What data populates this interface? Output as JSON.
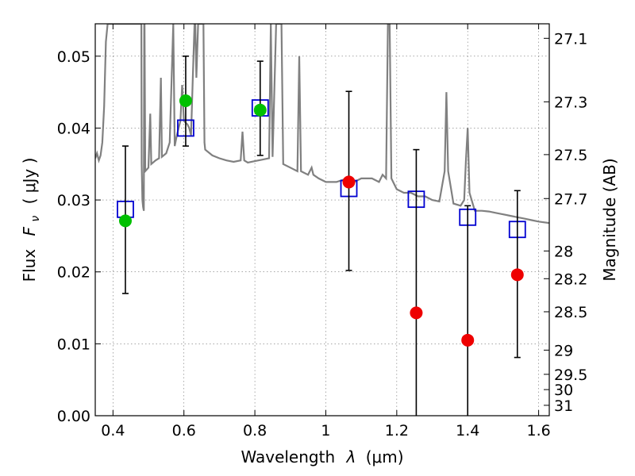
{
  "chart_data": {
    "type": "scatter",
    "xlabel_text": "Wavelength",
    "xlabel_math": "λ",
    "xlabel_unit": "(μm)",
    "ylabel_text": "Flux",
    "ylabel_math": "F",
    "ylabel_sub": "ν",
    "ylabel_unit": "( μJy )",
    "y2label": "Magnitude (AB)",
    "xlim": [
      0.35,
      1.63
    ],
    "ylim": [
      0.0,
      0.0545
    ],
    "x_ticks": [
      0.4,
      0.6,
      0.8,
      1.0,
      1.2,
      1.4,
      1.6
    ],
    "x_tick_labels": [
      "0.4",
      "0.6",
      "0.8",
      "1",
      "1.2",
      "1.4",
      "1.6"
    ],
    "y_ticks": [
      0.0,
      0.01,
      0.02,
      0.03,
      0.04,
      0.05
    ],
    "y_tick_labels": [
      "0.00",
      "0.01",
      "0.02",
      "0.03",
      "0.04",
      "0.05"
    ],
    "y2_ticks": [
      27.1,
      27.3,
      27.5,
      27.7,
      28,
      28.2,
      28.5,
      29,
      29.5,
      30,
      31
    ],
    "y2_tick_labels": [
      "27.1",
      "27.3",
      "27.5",
      "27.7",
      "28",
      "28.2",
      "28.5",
      "29",
      "29.5",
      "30",
      "31"
    ],
    "grid": true,
    "colors": {
      "spectrum": "#808080",
      "detection": "#00c000",
      "low_significance": "#ee0000",
      "model_photometry": "#0000d0",
      "errorbar": "#000000"
    },
    "series": [
      {
        "role": "spectrum",
        "style": "line",
        "points": [
          [
            0.35,
            0.0358
          ],
          [
            0.355,
            0.0365
          ],
          [
            0.36,
            0.0355
          ],
          [
            0.365,
            0.0362
          ],
          [
            0.37,
            0.038
          ],
          [
            0.375,
            0.043
          ],
          [
            0.38,
            0.052
          ],
          [
            0.385,
            0.0545
          ],
          [
            0.39,
            0.0545
          ],
          [
            0.395,
            0.0545
          ],
          [
            0.4,
            0.0545
          ],
          [
            0.405,
            0.0545
          ],
          [
            0.41,
            0.0545
          ],
          [
            0.415,
            0.0545
          ],
          [
            0.42,
            0.0545
          ],
          [
            0.425,
            0.0545
          ],
          [
            0.43,
            0.0545
          ],
          [
            0.435,
            0.0545
          ],
          [
            0.44,
            0.0545
          ],
          [
            0.445,
            0.0545
          ],
          [
            0.45,
            0.0545
          ],
          [
            0.455,
            0.0545
          ],
          [
            0.46,
            0.0545
          ],
          [
            0.465,
            0.0545
          ],
          [
            0.47,
            0.0545
          ],
          [
            0.475,
            0.0545
          ],
          [
            0.48,
            0.0545
          ],
          [
            0.481,
            0.035
          ],
          [
            0.483,
            0.03
          ],
          [
            0.485,
            0.029
          ],
          [
            0.487,
            0.0285
          ],
          [
            0.488,
            0.0545
          ],
          [
            0.489,
            0.0545
          ],
          [
            0.491,
            0.034
          ],
          [
            0.5,
            0.0345
          ],
          [
            0.505,
            0.042
          ],
          [
            0.508,
            0.035
          ],
          [
            0.52,
            0.0355
          ],
          [
            0.53,
            0.0358
          ],
          [
            0.535,
            0.047
          ],
          [
            0.538,
            0.036
          ],
          [
            0.55,
            0.0365
          ],
          [
            0.56,
            0.038
          ],
          [
            0.57,
            0.0545
          ],
          [
            0.574,
            0.0375
          ],
          [
            0.58,
            0.039
          ],
          [
            0.59,
            0.041
          ],
          [
            0.595,
            0.046
          ],
          [
            0.6,
            0.041
          ],
          [
            0.61,
            0.0405
          ],
          [
            0.615,
            0.04
          ],
          [
            0.62,
            0.039
          ],
          [
            0.625,
            0.047
          ],
          [
            0.63,
            0.0545
          ],
          [
            0.632,
            0.0545
          ],
          [
            0.635,
            0.047
          ],
          [
            0.64,
            0.0545
          ],
          [
            0.645,
            0.0545
          ],
          [
            0.65,
            0.0545
          ],
          [
            0.655,
            0.0545
          ],
          [
            0.658,
            0.038
          ],
          [
            0.66,
            0.037
          ],
          [
            0.68,
            0.0362
          ],
          [
            0.7,
            0.0358
          ],
          [
            0.72,
            0.0355
          ],
          [
            0.74,
            0.0353
          ],
          [
            0.76,
            0.0355
          ],
          [
            0.765,
            0.0395
          ],
          [
            0.77,
            0.0355
          ],
          [
            0.78,
            0.0352
          ],
          [
            0.8,
            0.0354
          ],
          [
            0.82,
            0.0356
          ],
          [
            0.84,
            0.0358
          ],
          [
            0.845,
            0.0545
          ],
          [
            0.85,
            0.036
          ],
          [
            0.86,
            0.0545
          ],
          [
            0.865,
            0.0545
          ],
          [
            0.87,
            0.0545
          ],
          [
            0.875,
            0.0545
          ],
          [
            0.88,
            0.035
          ],
          [
            0.9,
            0.0345
          ],
          [
            0.92,
            0.034
          ],
          [
            0.925,
            0.05
          ],
          [
            0.93,
            0.034
          ],
          [
            0.95,
            0.0335
          ],
          [
            0.96,
            0.0345
          ],
          [
            0.965,
            0.0335
          ],
          [
            0.98,
            0.033
          ],
          [
            1.0,
            0.0325
          ],
          [
            1.03,
            0.0325
          ],
          [
            1.06,
            0.033
          ],
          [
            1.08,
            0.0325
          ],
          [
            1.1,
            0.033
          ],
          [
            1.13,
            0.033
          ],
          [
            1.15,
            0.0325
          ],
          [
            1.16,
            0.0335
          ],
          [
            1.17,
            0.033
          ],
          [
            1.175,
            0.0545
          ],
          [
            1.18,
            0.0545
          ],
          [
            1.185,
            0.033
          ],
          [
            1.2,
            0.0315
          ],
          [
            1.22,
            0.031
          ],
          [
            1.24,
            0.031
          ],
          [
            1.26,
            0.0305
          ],
          [
            1.28,
            0.0305
          ],
          [
            1.3,
            0.03
          ],
          [
            1.32,
            0.0298
          ],
          [
            1.335,
            0.034
          ],
          [
            1.34,
            0.045
          ],
          [
            1.345,
            0.034
          ],
          [
            1.36,
            0.0295
          ],
          [
            1.38,
            0.0292
          ],
          [
            1.39,
            0.03
          ],
          [
            1.395,
            0.0355
          ],
          [
            1.4,
            0.04
          ],
          [
            1.405,
            0.031
          ],
          [
            1.42,
            0.0285
          ],
          [
            1.44,
            0.0285
          ],
          [
            1.46,
            0.0284
          ],
          [
            1.48,
            0.0282
          ],
          [
            1.5,
            0.028
          ],
          [
            1.52,
            0.0278
          ],
          [
            1.54,
            0.0276
          ],
          [
            1.56,
            0.0274
          ],
          [
            1.58,
            0.0272
          ],
          [
            1.6,
            0.027
          ],
          [
            1.63,
            0.0268
          ]
        ]
      },
      {
        "role": "model_photometry",
        "style": "open-square",
        "points": [
          [
            0.435,
            0.0287
          ],
          [
            0.605,
            0.04
          ],
          [
            0.815,
            0.0428
          ],
          [
            1.065,
            0.0316
          ],
          [
            1.255,
            0.0301
          ],
          [
            1.4,
            0.0276
          ],
          [
            1.54,
            0.0259
          ]
        ]
      },
      {
        "role": "errorbars",
        "style": "errorbar",
        "bars": [
          {
            "x": 0.435,
            "low": 0.017,
            "high": 0.0375
          },
          {
            "x": 0.605,
            "low": 0.0375,
            "high": 0.05
          },
          {
            "x": 0.815,
            "low": 0.0362,
            "high": 0.0493
          },
          {
            "x": 1.065,
            "low": 0.0202,
            "high": 0.0451
          },
          {
            "x": 1.255,
            "low": 0.0,
            "high": 0.037
          },
          {
            "x": 1.4,
            "low": 0.0,
            "high": 0.0292
          },
          {
            "x": 1.54,
            "low": 0.0081,
            "high": 0.0313
          }
        ]
      },
      {
        "role": "detection",
        "style": "filled-circle",
        "points": [
          [
            0.435,
            0.0271
          ],
          [
            0.605,
            0.0438
          ],
          [
            0.815,
            0.0425
          ]
        ]
      },
      {
        "role": "low_significance",
        "style": "filled-circle",
        "points": [
          [
            1.065,
            0.0325
          ],
          [
            1.255,
            0.0143
          ],
          [
            1.4,
            0.0105
          ],
          [
            1.54,
            0.0196
          ]
        ]
      }
    ]
  }
}
